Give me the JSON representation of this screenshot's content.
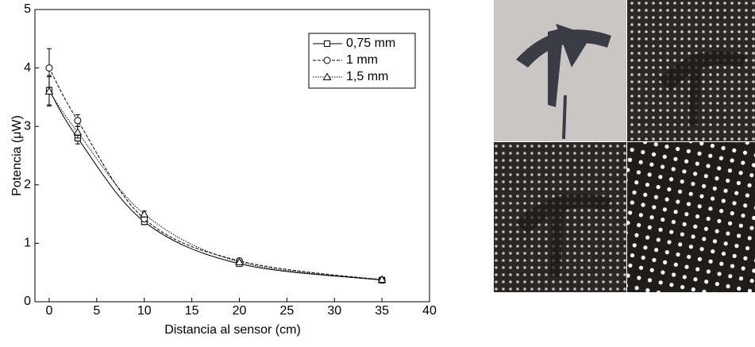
{
  "chart_data": {
    "type": "line",
    "x_label": "Distancia al sensor (cm)",
    "y_label": "Potencia (μW)",
    "x": [
      0,
      3,
      10,
      20,
      35
    ],
    "xlim": [
      -1.5,
      40
    ],
    "xticks": [
      0,
      5,
      10,
      15,
      20,
      25,
      30,
      35,
      40
    ],
    "ylim": [
      0,
      5
    ],
    "yticks": [
      0,
      1,
      2,
      3,
      4,
      5
    ],
    "legend": "top-right",
    "series": [
      {
        "name": "0,75 mm",
        "color": "#000000",
        "dash": "solid",
        "marker": "square",
        "values": [
          3.62,
          2.8,
          1.37,
          0.65,
          0.37
        ],
        "errors": [
          0.25,
          0.1,
          0.05,
          0.03,
          0.02
        ]
      },
      {
        "name": "1 mm",
        "color": "#000000",
        "dash": "dashed",
        "marker": "circle",
        "values": [
          4.0,
          3.1,
          1.42,
          0.7,
          0.37
        ],
        "errors": [
          0.33,
          0.1,
          0.05,
          0.03,
          0.02
        ]
      },
      {
        "name": "1,5 mm",
        "color": "#000000",
        "dash": "dotted",
        "marker": "triangle",
        "values": [
          3.6,
          2.9,
          1.5,
          0.68,
          0.38
        ],
        "errors": [
          0.25,
          0.1,
          0.05,
          0.03,
          0.02
        ]
      }
    ]
  }
}
